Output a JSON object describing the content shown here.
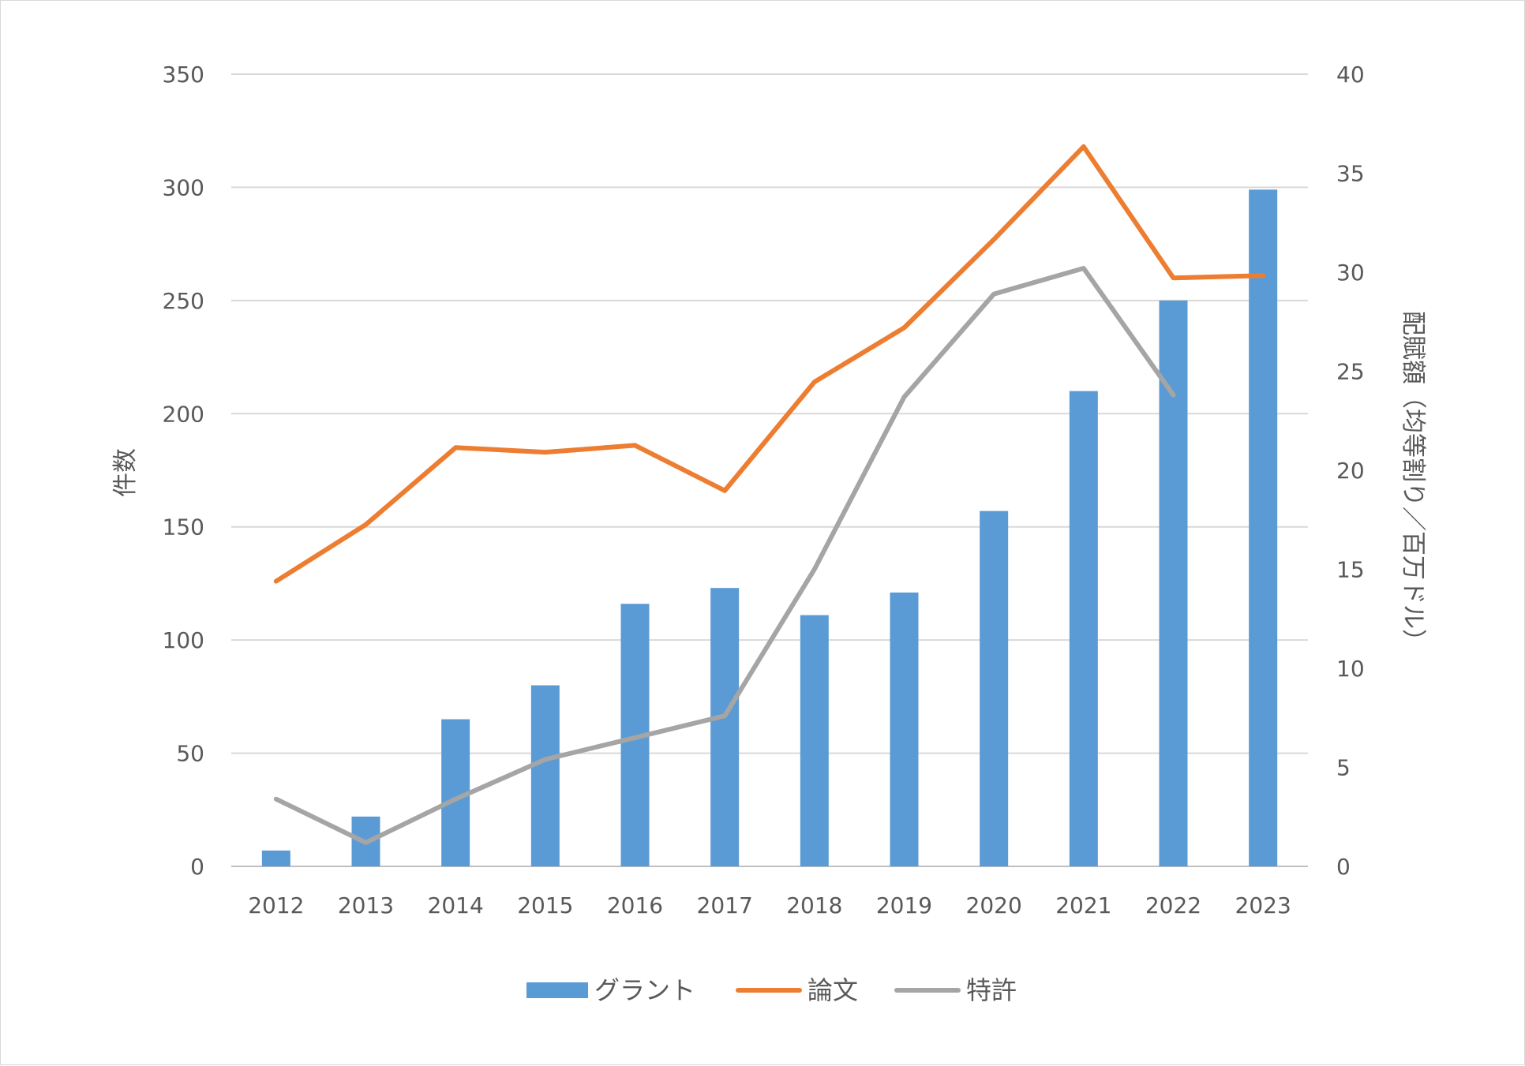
{
  "chart_data": {
    "type": "bar",
    "categories": [
      "2012",
      "2013",
      "2014",
      "2015",
      "2016",
      "2017",
      "2018",
      "2019",
      "2020",
      "2021",
      "2022",
      "2023"
    ],
    "y_left": {
      "label": "件数",
      "ylim": [
        0,
        350
      ],
      "ticks": [
        "0",
        "50",
        "100",
        "150",
        "200",
        "250",
        "300",
        "350"
      ]
    },
    "y_right": {
      "label": "配賦額（均等割り／百万ドル）",
      "ylim": [
        0,
        40
      ],
      "ticks": [
        "0",
        "5",
        "10",
        "15",
        "20",
        "25",
        "30",
        "35",
        "40"
      ]
    },
    "series": [
      {
        "name": "グラント",
        "kind": "bar",
        "axis": "left",
        "color": "#5b9bd5",
        "values": [
          7,
          22,
          65,
          80,
          116,
          123,
          111,
          121,
          157,
          210,
          250,
          299
        ]
      },
      {
        "name": "論文",
        "kind": "line",
        "axis": "left",
        "color": "#ed7d31",
        "values": [
          126,
          151,
          185,
          183,
          186,
          166,
          214,
          238,
          277,
          318,
          260,
          261
        ]
      },
      {
        "name": "特許",
        "kind": "line",
        "axis": "right",
        "color": "#a5a5a5",
        "values": [
          3.4,
          1.2,
          3.4,
          5.4,
          6.5,
          7.6,
          15.0,
          23.7,
          28.9,
          30.2,
          23.8,
          null
        ]
      }
    ],
    "grid": true,
    "legend": "bottom"
  }
}
